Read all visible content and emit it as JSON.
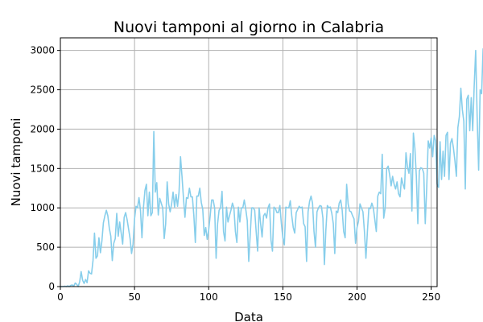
{
  "chart_data": {
    "type": "line",
    "title": "Nuovi tamponi al giorno in Calabria",
    "xlabel": "Data",
    "ylabel": "Nuovi tamponi",
    "xlim": [
      0,
      254
    ],
    "ylim": [
      0,
      3160
    ],
    "xticks": [
      0,
      50,
      100,
      150,
      200,
      250
    ],
    "yticks": [
      0,
      500,
      1000,
      1500,
      2000,
      2500,
      3000
    ],
    "grid": true,
    "legend": "none",
    "colors": {
      "line": "#87ceeb",
      "grid": "#b0b0b0",
      "axis": "#000000"
    },
    "series": [
      {
        "values": [
          0,
          0,
          0,
          5,
          0,
          10,
          0,
          15,
          20,
          5,
          45,
          30,
          0,
          60,
          190,
          80,
          40,
          90,
          50,
          200,
          170,
          160,
          330,
          680,
          360,
          390,
          620,
          430,
          580,
          810,
          900,
          970,
          900,
          740,
          640,
          330,
          550,
          610,
          930,
          640,
          820,
          680,
          540,
          880,
          940,
          850,
          730,
          610,
          420,
          540,
          860,
          1020,
          1000,
          1130,
          970,
          620,
          1000,
          1220,
          1300,
          900,
          1200,
          900,
          940,
          1970,
          1200,
          1320,
          910,
          1120,
          1060,
          1000,
          610,
          800,
          1330,
          1050,
          950,
          1050,
          1200,
          1010,
          1170,
          1020,
          1200,
          1650,
          1400,
          1120,
          880,
          1130,
          1120,
          1250,
          1140,
          1140,
          900,
          560,
          1150,
          1150,
          1250,
          1070,
          980,
          650,
          750,
          600,
          720,
          900,
          1100,
          1100,
          1000,
          360,
          800,
          970,
          1000,
          1210,
          700,
          580,
          1010,
          820,
          900,
          970,
          1060,
          1000,
          700,
          560,
          1010,
          820,
          1000,
          1000,
          1100,
          980,
          840,
          320,
          660,
          1000,
          1000,
          970,
          700,
          450,
          1000,
          800,
          630,
          900,
          930,
          870,
          1000,
          1050,
          590,
          450,
          1010,
          990,
          940,
          940,
          1030,
          800,
          620,
          530,
          1010,
          1000,
          1000,
          1090,
          900,
          750,
          680,
          940,
          980,
          1020,
          1000,
          1010,
          800,
          760,
          320,
          950,
          1080,
          1150,
          1060,
          700,
          500,
          950,
          1000,
          1030,
          1020,
          870,
          280,
          720,
          1030,
          1000,
          1010,
          930,
          800,
          420,
          960,
          940,
          1060,
          1100,
          970,
          700,
          620,
          1300,
          1050,
          960,
          950,
          900,
          860,
          550,
          750,
          830,
          1050,
          1000,
          950,
          700,
          360,
          700,
          1000,
          990,
          1060,
          1000,
          850,
          700,
          1150,
          1200,
          1180,
          1680,
          870,
          1000,
          1500,
          1530,
          1420,
          1280,
          1400,
          1300,
          1240,
          1330,
          1180,
          1140,
          1380,
          1300,
          1240,
          1700,
          1520,
          1440,
          1690,
          960,
          1950,
          1760,
          1400,
          800,
          1470,
          1510,
          1500,
          1440,
          800,
          1260,
          1850,
          1760,
          1890,
          1650,
          1920,
          1850,
          1300,
          1260,
          1840,
          1360,
          1720,
          1400,
          1920,
          1960,
          1360,
          1820,
          1880,
          1760,
          1600,
          1400,
          2020,
          2160,
          2520,
          2250,
          2100,
          1240,
          2380,
          2430,
          1980,
          2400,
          1980,
          2550,
          3000,
          2150,
          1480,
          2500,
          2450,
          3020
        ]
      }
    ]
  }
}
